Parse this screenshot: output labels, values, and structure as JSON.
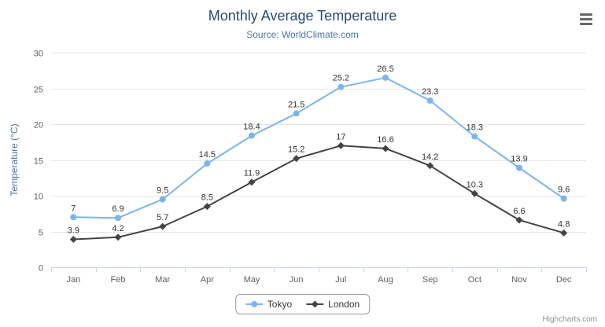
{
  "chart_data": {
    "type": "line",
    "title": "Monthly Average Temperature",
    "subtitle": "Source: WorldClimate.com",
    "categories": [
      "Jan",
      "Feb",
      "Mar",
      "Apr",
      "May",
      "Jun",
      "Jul",
      "Aug",
      "Sep",
      "Oct",
      "Nov",
      "Dec"
    ],
    "series": [
      {
        "name": "Tokyo",
        "marker": "circle",
        "color": "#7cb5ec",
        "values": [
          7,
          6.9,
          9.5,
          14.5,
          18.4,
          21.5,
          25.2,
          26.5,
          23.3,
          18.3,
          13.9,
          9.6
        ]
      },
      {
        "name": "London",
        "marker": "diamond",
        "color": "#434348",
        "values": [
          3.9,
          4.2,
          5.7,
          8.5,
          11.9,
          15.2,
          17,
          16.6,
          14.2,
          10.3,
          6.6,
          4.8
        ]
      }
    ],
    "xlabel": "",
    "ylabel": "Temperature (°C)",
    "ylim": [
      0,
      30
    ],
    "ytick_step": 5,
    "grid": true,
    "data_labels": true,
    "legend_position": "bottom"
  },
  "footer": {
    "credits": "Highcharts.com"
  },
  "style": {
    "title_color": "#274b6d",
    "subtitle_color": "#4d759e",
    "grid_color": "#e6e6e6",
    "axis_line_color": "#ccd6eb",
    "tick_label_color": "#606060",
    "legend_border_color": "#999999"
  }
}
